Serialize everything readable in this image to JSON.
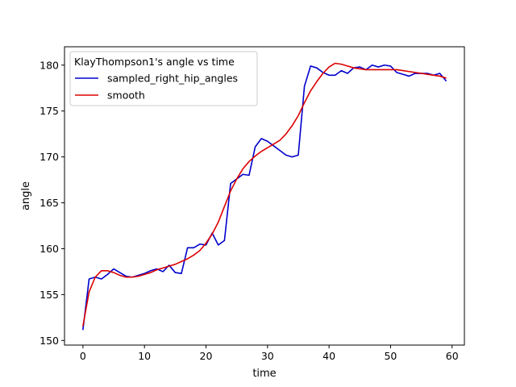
{
  "chart_data": {
    "type": "line",
    "xlabel": "time",
    "ylabel": "angle",
    "xlim": [
      -3,
      62
    ],
    "ylim": [
      149.5,
      182
    ],
    "xticks": [
      0,
      10,
      20,
      30,
      40,
      50,
      60
    ],
    "yticks": [
      150,
      155,
      160,
      165,
      170,
      175,
      180
    ],
    "grid": false,
    "legend": {
      "title": "KlayThompson1's angle vs time",
      "position": "top-left"
    },
    "series": [
      {
        "name": "sampled_right_hip_angles",
        "color": "#0000cc",
        "x": [
          0,
          1,
          2,
          3,
          4,
          5,
          6,
          7,
          8,
          9,
          10,
          11,
          12,
          13,
          14,
          15,
          16,
          17,
          18,
          19,
          20,
          21,
          22,
          23,
          24,
          25,
          26,
          27,
          28,
          29,
          30,
          31,
          32,
          33,
          34,
          35,
          36,
          37,
          38,
          39,
          40,
          41,
          42,
          43,
          44,
          45,
          46,
          47,
          48,
          49,
          50,
          51,
          52,
          53,
          54,
          55,
          56,
          57,
          58,
          59
        ],
        "y": [
          151.2,
          156.7,
          156.9,
          156.7,
          157.2,
          157.8,
          157.4,
          157.0,
          156.9,
          157.1,
          157.3,
          157.6,
          157.8,
          157.5,
          158.2,
          157.4,
          157.3,
          160.1,
          160.1,
          160.5,
          160.4,
          161.7,
          160.4,
          160.9,
          167.1,
          167.6,
          168.1,
          168.0,
          171.1,
          172.0,
          171.7,
          171.2,
          170.7,
          170.2,
          170.0,
          170.2,
          177.7,
          179.9,
          179.7,
          179.2,
          178.9,
          178.9,
          179.4,
          179.1,
          179.7,
          179.8,
          179.5,
          180.0,
          179.8,
          180.0,
          179.9,
          179.2,
          179.0,
          178.8,
          179.1,
          179.1,
          179.1,
          178.9,
          179.1,
          178.3
        ]
      },
      {
        "name": "smooth",
        "color": "#dd0000",
        "x": [
          0,
          1,
          2,
          3,
          4,
          5,
          6,
          7,
          8,
          9,
          10,
          11,
          12,
          13,
          14,
          15,
          16,
          17,
          18,
          19,
          20,
          21,
          22,
          23,
          24,
          25,
          26,
          27,
          28,
          29,
          30,
          31,
          32,
          33,
          34,
          35,
          36,
          37,
          38,
          39,
          40,
          41,
          42,
          43,
          44,
          45,
          46,
          47,
          48,
          49,
          50,
          51,
          52,
          53,
          54,
          55,
          56,
          57,
          58,
          59
        ],
        "y": [
          151.6,
          155.3,
          156.9,
          157.6,
          157.6,
          157.4,
          157.1,
          156.9,
          156.9,
          157.0,
          157.2,
          157.4,
          157.7,
          157.9,
          158.1,
          158.3,
          158.6,
          158.9,
          159.3,
          159.8,
          160.6,
          161.6,
          162.9,
          164.6,
          166.3,
          167.6,
          168.7,
          169.5,
          170.1,
          170.6,
          171.0,
          171.4,
          171.8,
          172.5,
          173.4,
          174.5,
          175.9,
          177.2,
          178.2,
          179.1,
          179.8,
          180.2,
          180.1,
          179.9,
          179.7,
          179.6,
          179.5,
          179.5,
          179.5,
          179.5,
          179.5,
          179.5,
          179.4,
          179.3,
          179.2,
          179.1,
          179.0,
          178.9,
          178.8,
          178.6
        ]
      }
    ]
  }
}
